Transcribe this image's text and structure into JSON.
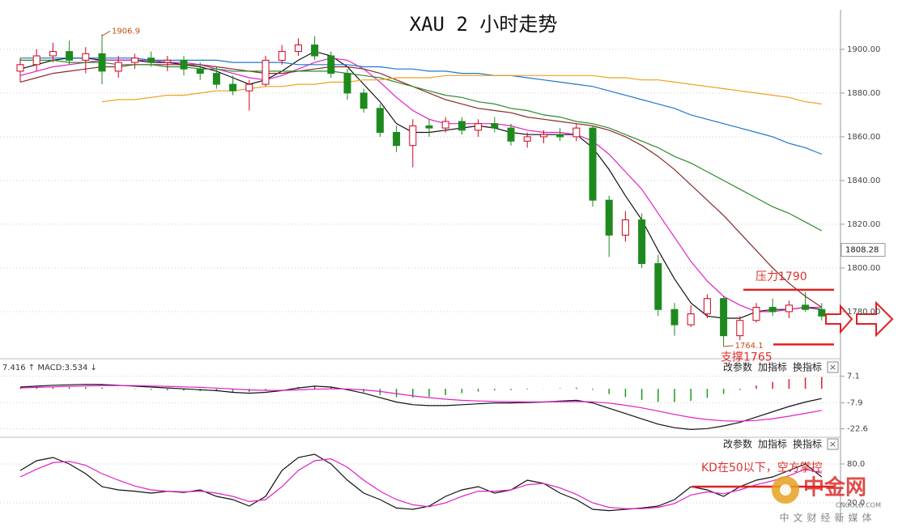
{
  "chart_data": {
    "type": "candlestick",
    "title": "XAU 2 小时走势",
    "up_color": "#d0021b",
    "down_color": "#1e8a1e",
    "ohlc": [
      [
        1890,
        1896,
        1885,
        1893
      ],
      [
        1893,
        1900,
        1890,
        1897
      ],
      [
        1897,
        1903,
        1894,
        1899
      ],
      [
        1899,
        1904,
        1893,
        1895
      ],
      [
        1895,
        1901,
        1889,
        1898
      ],
      [
        1898,
        1906.9,
        1884,
        1890
      ],
      [
        1890,
        1897,
        1887,
        1894
      ],
      [
        1894,
        1898,
        1891,
        1896
      ],
      [
        1896,
        1899,
        1892,
        1894
      ],
      [
        1894,
        1897,
        1890,
        1895
      ],
      [
        1895,
        1897,
        1888,
        1891
      ],
      [
        1891,
        1894,
        1886,
        1889
      ],
      [
        1889,
        1892,
        1882,
        1884
      ],
      [
        1884,
        1888,
        1879,
        1881
      ],
      [
        1881,
        1886,
        1872,
        1884
      ],
      [
        1884,
        1897,
        1883,
        1895
      ],
      [
        1895,
        1902,
        1893,
        1899
      ],
      [
        1899,
        1905,
        1897,
        1902
      ],
      [
        1902,
        1906,
        1895,
        1897
      ],
      [
        1897,
        1899,
        1887,
        1889
      ],
      [
        1889,
        1891,
        1877,
        1880
      ],
      [
        1880,
        1882,
        1871,
        1873
      ],
      [
        1873,
        1875,
        1860,
        1862
      ],
      [
        1862,
        1865,
        1853,
        1856
      ],
      [
        1856,
        1868,
        1846,
        1865
      ],
      [
        1865,
        1868,
        1860,
        1864
      ],
      [
        1864,
        1869,
        1862,
        1867
      ],
      [
        1867,
        1869,
        1861,
        1863
      ],
      [
        1863,
        1868,
        1860,
        1866
      ],
      [
        1866,
        1869,
        1862,
        1864
      ],
      [
        1864,
        1866,
        1856,
        1858
      ],
      [
        1858,
        1862,
        1855,
        1860
      ],
      [
        1860,
        1863,
        1857,
        1861
      ],
      [
        1861,
        1864,
        1858,
        1860
      ],
      [
        1860,
        1866,
        1858,
        1864
      ],
      [
        1864,
        1865,
        1828,
        1831
      ],
      [
        1831,
        1833,
        1805,
        1815
      ],
      [
        1815,
        1826,
        1812,
        1822
      ],
      [
        1822,
        1825,
        1800,
        1802
      ],
      [
        1802,
        1806,
        1778,
        1781
      ],
      [
        1781,
        1784,
        1769,
        1774
      ],
      [
        1774,
        1783,
        1773,
        1779
      ],
      [
        1779,
        1788,
        1777,
        1786
      ],
      [
        1786,
        1787,
        1764.1,
        1769
      ],
      [
        1769,
        1778,
        1767,
        1776
      ],
      [
        1776,
        1784,
        1775,
        1782
      ],
      [
        1782,
        1786,
        1778,
        1780
      ],
      [
        1780,
        1785,
        1777,
        1783
      ],
      [
        1783,
        1789,
        1780,
        1781
      ],
      [
        1781,
        1784,
        1776,
        1778
      ]
    ],
    "series": [
      {
        "color": "#111111",
        "values": [
          1891,
          1893,
          1895,
          1896,
          1896,
          1895,
          1895,
          1895,
          1894,
          1894,
          1893,
          1892,
          1890,
          1887,
          1884,
          1886,
          1890,
          1895,
          1899,
          1897,
          1892,
          1884,
          1876,
          1866,
          1862,
          1862,
          1863,
          1864,
          1865,
          1864,
          1862,
          1861,
          1861,
          1861,
          1861,
          1855,
          1845,
          1833,
          1822,
          1808,
          1795,
          1784,
          1778,
          1777,
          1777,
          1780,
          1781,
          1781,
          1782,
          1781
        ]
      },
      {
        "color": "#e020c8",
        "values": [
          1888,
          1890,
          1892,
          1893,
          1894,
          1895,
          1895,
          1895,
          1895,
          1894,
          1894,
          1893,
          1891,
          1889,
          1887,
          1886,
          1888,
          1891,
          1894,
          1896,
          1895,
          1891,
          1885,
          1878,
          1872,
          1868,
          1866,
          1866,
          1866,
          1866,
          1865,
          1863,
          1862,
          1862,
          1861,
          1858,
          1852,
          1844,
          1836,
          1825,
          1814,
          1803,
          1794,
          1787,
          1783,
          1780,
          1780,
          1781,
          1782,
          1782
        ]
      },
      {
        "color": "#8b2a2a",
        "values": [
          1885,
          1887,
          1889,
          1890,
          1891,
          1892,
          1892,
          1893,
          1893,
          1893,
          1893,
          1893,
          1892,
          1891,
          1890,
          1889,
          1889,
          1890,
          1891,
          1892,
          1892,
          1891,
          1889,
          1886,
          1883,
          1880,
          1877,
          1875,
          1873,
          1872,
          1871,
          1869,
          1868,
          1867,
          1866,
          1865,
          1863,
          1860,
          1856,
          1851,
          1845,
          1838,
          1831,
          1824,
          1816,
          1808,
          1800,
          1793,
          1787,
          1782
        ]
      },
      {
        "color": "#2e8b2e",
        "values": [
          1895,
          1895,
          1895,
          1894,
          1894,
          1894,
          1893,
          1893,
          1893,
          1892,
          1892,
          1891,
          1891,
          1890,
          1890,
          1890,
          1890,
          1890,
          1890,
          1890,
          1889,
          1888,
          1887,
          1885,
          1883,
          1881,
          1879,
          1878,
          1876,
          1875,
          1873,
          1872,
          1870,
          1869,
          1867,
          1866,
          1864,
          1861,
          1858,
          1855,
          1851,
          1848,
          1844,
          1840,
          1836,
          1832,
          1828,
          1825,
          1821,
          1817
        ]
      },
      {
        "color": "#1f78c8",
        "values": [
          1896,
          1896,
          1896,
          1896,
          1896,
          1896,
          1896,
          1896,
          1895,
          1895,
          1895,
          1895,
          1895,
          1894,
          1894,
          1894,
          1894,
          1893,
          1893,
          1893,
          1893,
          1892,
          1892,
          1891,
          1891,
          1890,
          1890,
          1889,
          1889,
          1888,
          1888,
          1887,
          1886,
          1885,
          1884,
          1883,
          1881,
          1879,
          1877,
          1875,
          1873,
          1870,
          1868,
          1866,
          1864,
          1862,
          1860,
          1857,
          1855,
          1852
        ]
      },
      {
        "color": "#f0a020",
        "values": [
          null,
          null,
          null,
          null,
          null,
          1876,
          1877,
          1877,
          1878,
          1879,
          1879,
          1880,
          1881,
          1881,
          1882,
          1883,
          1883,
          1884,
          1884,
          1885,
          1885,
          1886,
          1886,
          1887,
          1887,
          1887,
          1888,
          1888,
          1888,
          1888,
          1888,
          1888,
          1888,
          1888,
          1888,
          1888,
          1887,
          1887,
          1886,
          1886,
          1885,
          1884,
          1883,
          1882,
          1881,
          1880,
          1879,
          1878,
          1876,
          1875
        ]
      }
    ],
    "ylim": [
      1759.6,
      1917
    ],
    "yticks": [
      {
        "value": 1780,
        "label": "1780.00"
      },
      {
        "value": 1800,
        "label": "1800.00"
      },
      {
        "value": 1820,
        "label": "1820.00"
      },
      {
        "value": 1840,
        "label": "1840.00"
      },
      {
        "value": 1860,
        "label": "1860.00"
      },
      {
        "value": 1880,
        "label": "1880.00"
      },
      {
        "value": 1900,
        "label": "1900.00"
      }
    ],
    "grid": true,
    "last_price": 1808.28,
    "levels": [
      {
        "label": "压力1790",
        "value": 1790
      },
      {
        "label": "支撑1765",
        "value": 1765
      }
    ],
    "buttons": [
      "改参数",
      "加指标",
      "换指标",
      "×"
    ],
    "macd": {
      "header": "7.416 ↑ MACD:3.534 ↓",
      "dif": [
        1,
        1.5,
        2,
        2.3,
        2.5,
        2.4,
        2,
        1.5,
        1,
        0.5,
        0,
        -0.5,
        -1,
        -2,
        -2.5,
        -2,
        -1,
        0.5,
        1.5,
        1,
        -0.5,
        -2.5,
        -5,
        -7.5,
        -9,
        -9.5,
        -9.5,
        -9,
        -8.5,
        -8,
        -8,
        -7.8,
        -7.5,
        -7,
        -6.5,
        -8,
        -11,
        -14,
        -17,
        -20,
        -22,
        -23,
        -22.5,
        -21,
        -19,
        -16,
        -13,
        -10,
        -7.5,
        -5.5
      ],
      "dea": [
        0.5,
        0.8,
        1.1,
        1.4,
        1.6,
        1.8,
        1.8,
        1.8,
        1.6,
        1.4,
        1.1,
        0.8,
        0.4,
        -0.1,
        -0.6,
        -0.9,
        -0.9,
        -0.6,
        -0.2,
        0,
        -0.1,
        -0.6,
        -1.5,
        -2.7,
        -4,
        -5,
        -5.9,
        -6.5,
        -6.9,
        -7.1,
        -7.3,
        -7.4,
        -7.4,
        -7.3,
        -7.2,
        -7.4,
        -8.1,
        -9.3,
        -10.8,
        -12.6,
        -14.5,
        -16.2,
        -17.4,
        -18.1,
        -18.3,
        -17.9,
        -16.9,
        -15.5,
        -13.9,
        -12.2
      ],
      "hist": [
        0.5,
        0.7,
        0.9,
        0.9,
        0.9,
        0.6,
        0.2,
        -0.3,
        -0.6,
        -0.9,
        -1.1,
        -1.3,
        -1.4,
        -1.9,
        -1.9,
        -1.1,
        -0.1,
        1.1,
        1.7,
        1,
        -0.4,
        -1.9,
        -3.5,
        -4.8,
        -5,
        -4.5,
        -3.6,
        -2.5,
        -1.6,
        -0.9,
        -0.7,
        -0.4,
        -0.1,
        0.3,
        0.7,
        -0.6,
        -2.9,
        -4.7,
        -6.2,
        -7.4,
        -7.5,
        -6.8,
        -5.1,
        -2.9,
        -0.7,
        1.9,
        3.9,
        5.5,
        6.4,
        6.7
      ],
      "ylim": [
        -26.5,
        15.2
      ],
      "yticks": [
        7.1,
        -7.9,
        -22.6
      ]
    },
    "kd": {
      "k": [
        70,
        85,
        90,
        80,
        65,
        45,
        40,
        38,
        35,
        38,
        36,
        40,
        30,
        25,
        15,
        30,
        70,
        90,
        95,
        80,
        55,
        35,
        25,
        12,
        10,
        15,
        30,
        40,
        45,
        35,
        40,
        55,
        50,
        35,
        25,
        10,
        8,
        10,
        12,
        15,
        25,
        45,
        40,
        30,
        45,
        55,
        60,
        70,
        80,
        60
      ],
      "d": [
        60,
        72,
        82,
        84,
        78,
        65,
        55,
        46,
        40,
        38,
        37,
        38,
        35,
        30,
        22,
        25,
        45,
        70,
        85,
        88,
        75,
        55,
        38,
        25,
        17,
        14,
        20,
        30,
        38,
        38,
        40,
        48,
        50,
        43,
        33,
        20,
        13,
        11,
        11,
        13,
        19,
        32,
        37,
        34,
        40,
        48,
        54,
        62,
        72,
        66
      ],
      "ylim": [
        -10,
        115
      ],
      "yticks": [
        {
          "value": 80,
          "label": "80.0"
        },
        {
          "value": 20,
          "label": "20.0"
        }
      ],
      "annotation": {
        "label": "KD在50以下，空方掌控",
        "value": 45
      }
    },
    "watermark": {
      "name": "中金网",
      "site": "CNGOLD.COM",
      "slogan": "中文财经新媒体"
    }
  }
}
